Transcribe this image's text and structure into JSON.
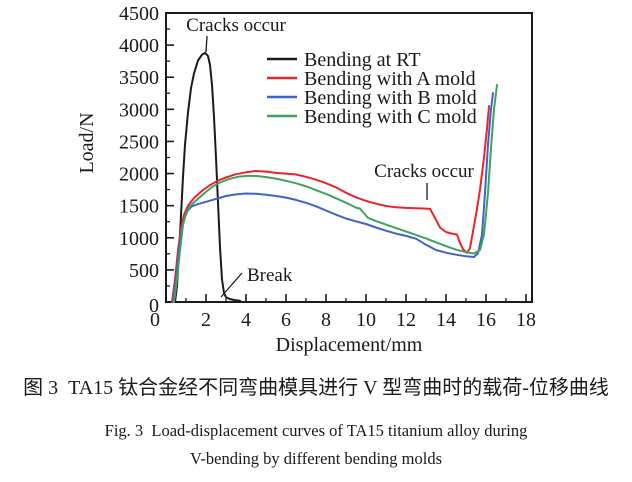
{
  "figure": {
    "caption_zh": "图 3  TA15 钛合金经不同弯曲模具进行 V 型弯曲时的载荷-位移曲线",
    "caption_en_line1": "Fig. 3  Load-displacement curves of TA15 titanium alloy during",
    "caption_en_line2": "V-bending by different bending molds"
  },
  "colors": {
    "background": "#ffffff",
    "axis": "#1b1b1b",
    "text": "#1a1a1a"
  },
  "chart_data": {
    "type": "line",
    "title": "",
    "xlabel": "Displacement/mm",
    "ylabel": "Load/N",
    "xlim": [
      0,
      18.3
    ],
    "ylim": [
      0,
      4500
    ],
    "x_major_ticks": [
      0,
      2,
      4,
      6,
      8,
      10,
      12,
      14,
      16,
      18
    ],
    "x_minor_ticks": [
      1,
      3,
      5,
      7,
      9,
      11,
      13,
      15,
      17
    ],
    "y_major_ticks": [
      0,
      500,
      1000,
      1500,
      2000,
      2500,
      3000,
      3500,
      4000,
      4500
    ],
    "y_minor_ticks": [
      250,
      750,
      1250,
      1750,
      2250,
      2750,
      3250,
      3750,
      4250
    ],
    "grid": false,
    "legend_position": "inside upper center-right",
    "annotations": [
      {
        "text": "Cracks occur",
        "target": "peak of Bending at RT curve (~3880 N at ~2 mm)"
      },
      {
        "text": "Cracks occur",
        "target": "Bending with A mold curve at ~13.4 mm (~1450 N)"
      },
      {
        "text": "Break",
        "target": "tail of Bending at RT curve (~2.9 mm, near 0 N)"
      }
    ],
    "series": [
      {
        "name": "Bending at RT",
        "color": "#1b1b1b",
        "points": [
          [
            0.45,
            0
          ],
          [
            0.55,
            250
          ],
          [
            0.65,
            750
          ],
          [
            0.75,
            1350
          ],
          [
            0.85,
            1950
          ],
          [
            0.95,
            2450
          ],
          [
            1.1,
            2950
          ],
          [
            1.25,
            3330
          ],
          [
            1.4,
            3560
          ],
          [
            1.6,
            3760
          ],
          [
            1.8,
            3850
          ],
          [
            1.95,
            3880
          ],
          [
            2.1,
            3830
          ],
          [
            2.2,
            3690
          ],
          [
            2.3,
            3380
          ],
          [
            2.4,
            2880
          ],
          [
            2.5,
            2250
          ],
          [
            2.6,
            1550
          ],
          [
            2.7,
            850
          ],
          [
            2.8,
            350
          ],
          [
            2.9,
            140
          ],
          [
            3.0,
            75
          ],
          [
            3.2,
            45
          ],
          [
            3.45,
            30
          ],
          [
            3.7,
            20
          ]
        ]
      },
      {
        "name": "Bending with A mold",
        "color": "#e7252b",
        "points": [
          [
            0.3,
            0
          ],
          [
            0.45,
            350
          ],
          [
            0.6,
            800
          ],
          [
            0.75,
            1150
          ],
          [
            0.9,
            1360
          ],
          [
            1.1,
            1500
          ],
          [
            1.4,
            1620
          ],
          [
            1.8,
            1730
          ],
          [
            2.2,
            1820
          ],
          [
            2.6,
            1890
          ],
          [
            3.0,
            1940
          ],
          [
            3.5,
            1990
          ],
          [
            4.0,
            2020
          ],
          [
            4.5,
            2040
          ],
          [
            5.0,
            2030
          ],
          [
            5.5,
            2010
          ],
          [
            6.0,
            2000
          ],
          [
            6.5,
            1985
          ],
          [
            7.0,
            1950
          ],
          [
            7.5,
            1905
          ],
          [
            8.0,
            1850
          ],
          [
            8.5,
            1785
          ],
          [
            9.0,
            1700
          ],
          [
            9.5,
            1630
          ],
          [
            10.0,
            1575
          ],
          [
            10.5,
            1530
          ],
          [
            11.0,
            1495
          ],
          [
            11.5,
            1475
          ],
          [
            12.0,
            1465
          ],
          [
            12.5,
            1460
          ],
          [
            13.0,
            1455
          ],
          [
            13.2,
            1450
          ],
          [
            13.45,
            1310
          ],
          [
            13.7,
            1160
          ],
          [
            14.0,
            1090
          ],
          [
            14.3,
            1065
          ],
          [
            14.55,
            1050
          ],
          [
            14.7,
            920
          ],
          [
            14.85,
            820
          ],
          [
            15.05,
            765
          ],
          [
            15.2,
            840
          ],
          [
            15.35,
            1100
          ],
          [
            15.55,
            1450
          ],
          [
            15.7,
            1750
          ],
          [
            15.9,
            2250
          ],
          [
            16.05,
            2700
          ],
          [
            16.15,
            3050
          ]
        ]
      },
      {
        "name": "Bending with B mold",
        "color": "#4063c8",
        "points": [
          [
            0.35,
            0
          ],
          [
            0.5,
            350
          ],
          [
            0.65,
            800
          ],
          [
            0.8,
            1150
          ],
          [
            0.95,
            1330
          ],
          [
            1.1,
            1430
          ],
          [
            1.3,
            1490
          ],
          [
            1.6,
            1525
          ],
          [
            2.0,
            1560
          ],
          [
            2.5,
            1605
          ],
          [
            3.0,
            1650
          ],
          [
            3.5,
            1675
          ],
          [
            4.0,
            1690
          ],
          [
            4.5,
            1685
          ],
          [
            5.0,
            1670
          ],
          [
            5.5,
            1650
          ],
          [
            6.0,
            1625
          ],
          [
            6.5,
            1590
          ],
          [
            7.0,
            1545
          ],
          [
            7.5,
            1490
          ],
          [
            8.0,
            1425
          ],
          [
            8.5,
            1360
          ],
          [
            9.0,
            1300
          ],
          [
            9.5,
            1255
          ],
          [
            10.0,
            1215
          ],
          [
            10.5,
            1160
          ],
          [
            11.0,
            1110
          ],
          [
            11.5,
            1065
          ],
          [
            12.0,
            1030
          ],
          [
            12.5,
            985
          ],
          [
            13.0,
            890
          ],
          [
            13.5,
            810
          ],
          [
            14.0,
            768
          ],
          [
            14.5,
            737
          ],
          [
            15.0,
            712
          ],
          [
            15.4,
            700
          ],
          [
            15.6,
            760
          ],
          [
            15.8,
            1050
          ],
          [
            15.95,
            1700
          ],
          [
            16.1,
            2450
          ],
          [
            16.25,
            3000
          ],
          [
            16.35,
            3255
          ]
        ]
      },
      {
        "name": "Bending with C mold",
        "color": "#3da45e",
        "points": [
          [
            0.4,
            0
          ],
          [
            0.55,
            350
          ],
          [
            0.7,
            800
          ],
          [
            0.85,
            1200
          ],
          [
            1.0,
            1380
          ],
          [
            1.2,
            1490
          ],
          [
            1.5,
            1580
          ],
          [
            1.9,
            1690
          ],
          [
            2.3,
            1790
          ],
          [
            2.7,
            1860
          ],
          [
            3.1,
            1910
          ],
          [
            3.6,
            1950
          ],
          [
            4.1,
            1965
          ],
          [
            4.6,
            1960
          ],
          [
            5.1,
            1940
          ],
          [
            5.6,
            1915
          ],
          [
            6.1,
            1880
          ],
          [
            6.6,
            1840
          ],
          [
            7.1,
            1790
          ],
          [
            7.6,
            1730
          ],
          [
            8.1,
            1670
          ],
          [
            8.6,
            1600
          ],
          [
            9.1,
            1530
          ],
          [
            9.5,
            1470
          ],
          [
            9.7,
            1455
          ],
          [
            10.1,
            1310
          ],
          [
            10.5,
            1260
          ],
          [
            11.0,
            1205
          ],
          [
            11.5,
            1150
          ],
          [
            12.0,
            1100
          ],
          [
            12.5,
            1045
          ],
          [
            13.0,
            990
          ],
          [
            13.5,
            930
          ],
          [
            14.0,
            870
          ],
          [
            14.5,
            815
          ],
          [
            15.0,
            775
          ],
          [
            15.4,
            755
          ],
          [
            15.7,
            810
          ],
          [
            15.9,
            1050
          ],
          [
            16.1,
            1700
          ],
          [
            16.25,
            2400
          ],
          [
            16.4,
            3000
          ],
          [
            16.55,
            3380
          ]
        ]
      }
    ]
  }
}
